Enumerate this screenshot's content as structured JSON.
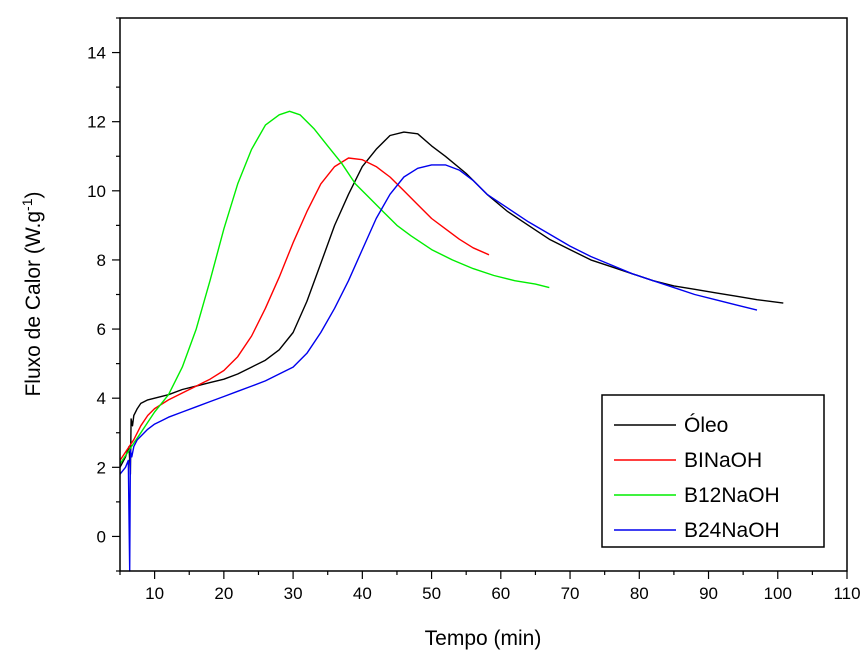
{
  "chart_data": {
    "type": "line",
    "xlabel": "Tempo (min)",
    "ylabel": "Fluxo de Calor (W.g",
    "ylabel_sup": "-1",
    "ylabel_end": ")",
    "xlim": [
      5,
      110
    ],
    "ylim": [
      -1,
      15
    ],
    "xticks": [
      10,
      20,
      30,
      40,
      50,
      60,
      70,
      80,
      90,
      100,
      110
    ],
    "yticks": [
      0,
      2,
      4,
      6,
      8,
      10,
      12,
      14
    ],
    "legend_position": "bottom-right",
    "series": [
      {
        "name": "Óleo",
        "color": "#000000",
        "x": [
          5.0,
          5.8,
          6.3,
          6.5,
          6.6,
          6.8,
          7.0,
          7.5,
          8.0,
          9.0,
          10.0,
          12,
          14,
          16,
          18,
          20,
          22,
          24,
          26,
          28,
          30,
          32,
          34,
          36,
          38,
          40,
          42,
          44,
          46,
          48,
          50,
          52,
          55,
          58,
          61,
          64,
          67,
          70,
          73,
          76,
          79,
          82,
          85,
          88,
          91,
          94,
          97,
          99,
          100.8
        ],
        "y": [
          2.0,
          2.3,
          2.6,
          1.8,
          3.4,
          3.2,
          3.5,
          3.7,
          3.85,
          3.95,
          4.0,
          4.1,
          4.25,
          4.35,
          4.45,
          4.55,
          4.7,
          4.9,
          5.1,
          5.4,
          5.9,
          6.8,
          7.9,
          9.0,
          9.9,
          10.7,
          11.2,
          11.6,
          11.7,
          11.65,
          11.3,
          11.0,
          10.5,
          9.9,
          9.4,
          9.0,
          8.6,
          8.3,
          8.0,
          7.8,
          7.6,
          7.4,
          7.25,
          7.15,
          7.05,
          6.95,
          6.85,
          6.8,
          6.75
        ]
      },
      {
        "name": "BINaOH",
        "color": "#ff0000",
        "x": [
          5.0,
          6.0,
          7.0,
          8.0,
          9.0,
          10.0,
          12,
          14,
          16,
          18,
          20,
          22,
          24,
          26,
          28,
          30,
          32,
          34,
          36,
          38,
          40,
          42,
          44,
          46,
          48,
          50,
          52,
          54,
          56,
          58.3
        ],
        "y": [
          2.2,
          2.5,
          2.8,
          3.2,
          3.5,
          3.7,
          3.95,
          4.15,
          4.35,
          4.55,
          4.8,
          5.2,
          5.8,
          6.6,
          7.5,
          8.5,
          9.4,
          10.2,
          10.7,
          10.95,
          10.9,
          10.7,
          10.4,
          10.0,
          9.6,
          9.2,
          8.9,
          8.6,
          8.35,
          8.15
        ]
      },
      {
        "name": "B12NaOH",
        "color": "#00ee00",
        "x": [
          5.0,
          6.0,
          7.0,
          8.0,
          9.0,
          10.0,
          11.0,
          12.0,
          14,
          16,
          18,
          20,
          22,
          24,
          26,
          28,
          29.5,
          31,
          33,
          35,
          37,
          39,
          41,
          43,
          45,
          47,
          50,
          53,
          56,
          59,
          62,
          65,
          67
        ],
        "y": [
          2.1,
          2.4,
          2.7,
          3.0,
          3.3,
          3.6,
          3.85,
          4.1,
          4.9,
          6.0,
          7.4,
          8.9,
          10.2,
          11.2,
          11.9,
          12.2,
          12.3,
          12.2,
          11.8,
          11.3,
          10.8,
          10.2,
          9.8,
          9.4,
          9.0,
          8.7,
          8.3,
          8.0,
          7.75,
          7.55,
          7.4,
          7.3,
          7.2
        ]
      },
      {
        "name": "B24NaOH",
        "color": "#0000ee",
        "x": [
          5.0,
          5.8,
          6.2,
          6.4,
          6.5,
          6.7,
          7.0,
          7.5,
          8.0,
          9.0,
          10.0,
          11.0,
          12,
          14,
          16,
          18,
          20,
          22,
          24,
          26,
          28,
          30,
          32,
          34,
          36,
          38,
          40,
          42,
          44,
          46,
          48,
          50,
          52,
          54,
          56,
          58,
          61,
          64,
          67,
          70,
          73,
          76,
          79,
          82,
          85,
          88,
          91,
          94,
          97
        ],
        "y": [
          1.8,
          2.0,
          2.2,
          -1.0,
          2.5,
          2.3,
          2.6,
          2.8,
          2.9,
          3.1,
          3.25,
          3.35,
          3.45,
          3.6,
          3.75,
          3.9,
          4.05,
          4.2,
          4.35,
          4.5,
          4.7,
          4.9,
          5.3,
          5.9,
          6.6,
          7.4,
          8.3,
          9.2,
          9.9,
          10.4,
          10.65,
          10.75,
          10.75,
          10.6,
          10.3,
          9.9,
          9.5,
          9.1,
          8.75,
          8.4,
          8.1,
          7.85,
          7.6,
          7.4,
          7.2,
          7.0,
          6.85,
          6.7,
          6.55
        ]
      }
    ]
  }
}
